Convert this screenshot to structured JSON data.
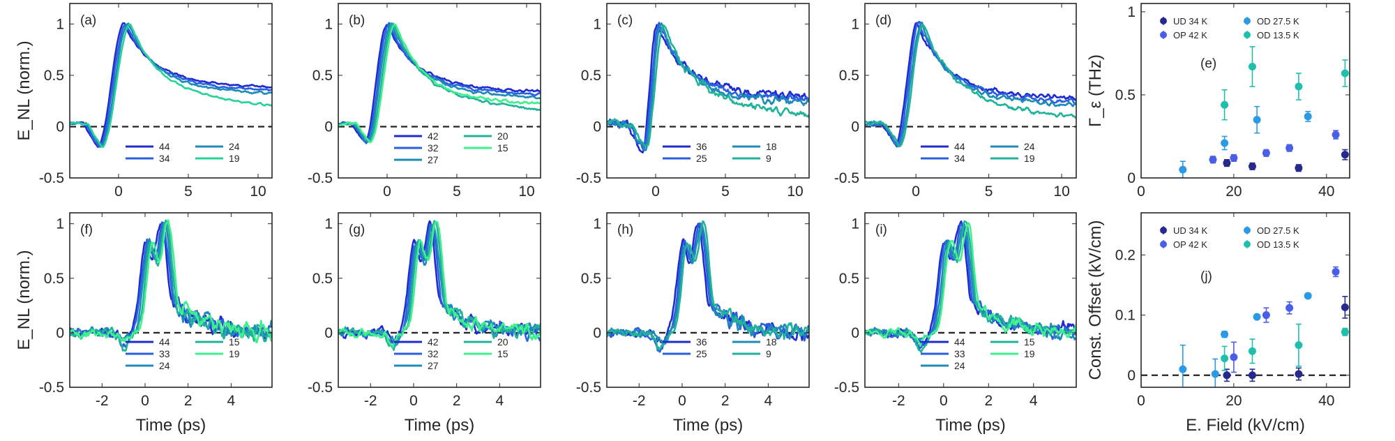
{
  "chart_data": [
    {
      "id": "a",
      "type": "line",
      "panel_label": "(a)",
      "ylabel": "E_NL (norm.)",
      "xlabel": "",
      "xlim": [
        -3.5,
        11
      ],
      "ylim": [
        -0.5,
        1.2
      ],
      "xticks": [
        "0",
        "5",
        "10"
      ],
      "yticks": [
        "-0.5",
        "0",
        "0.5",
        "1"
      ],
      "x_tick_values": [
        0,
        5,
        10
      ],
      "y_tick_values": [
        -0.5,
        0,
        0.5,
        1
      ],
      "dashed_zero_line": true,
      "t_peak": 0.4,
      "t_dip": -1.5,
      "dip": -0.2,
      "decay_end": 0.44,
      "noise": 0.02,
      "series": [
        {
          "name": "44",
          "color": "#1f2bd1"
        },
        {
          "name": "34",
          "color": "#2a5fe0"
        },
        {
          "name": "24",
          "color": "#1d8ab8"
        },
        {
          "name": "19",
          "color": "#26d39a"
        }
      ]
    },
    {
      "id": "b",
      "type": "line",
      "panel_label": "(b)",
      "ylabel": "",
      "xlabel": "",
      "xlim": [
        -3.5,
        11
      ],
      "ylim": [
        -0.5,
        1.2
      ],
      "xticks": [
        "0",
        "5",
        "10"
      ],
      "yticks": [
        "-0.5",
        "0",
        "0.5",
        "1"
      ],
      "x_tick_values": [
        0,
        5,
        10
      ],
      "y_tick_values": [
        -0.5,
        0,
        0.5,
        1
      ],
      "dashed_zero_line": true,
      "t_peak": 0.0,
      "t_dip": -1.6,
      "dip": -0.15,
      "decay_end": 0.4,
      "noise": 0.025,
      "series": [
        {
          "name": "42",
          "color": "#1f2bd1"
        },
        {
          "name": "32",
          "color": "#2a5fe0"
        },
        {
          "name": "27",
          "color": "#1d8ab8"
        },
        {
          "name": "20",
          "color": "#20b39a"
        },
        {
          "name": "15",
          "color": "#3ff08e"
        }
      ]
    },
    {
      "id": "c",
      "type": "line",
      "panel_label": "(c)",
      "ylabel": "",
      "xlabel": "",
      "xlim": [
        -3.5,
        11
      ],
      "ylim": [
        -0.5,
        1.2
      ],
      "xticks": [
        "0",
        "5",
        "10"
      ],
      "yticks": [
        "-0.5",
        "0",
        "0.5",
        "1"
      ],
      "x_tick_values": [
        0,
        5,
        10
      ],
      "y_tick_values": [
        -0.5,
        0,
        0.5,
        1
      ],
      "dashed_zero_line": true,
      "t_peak": 0.1,
      "t_dip": -1.0,
      "dip": -0.25,
      "decay_end": 0.35,
      "noise": 0.07,
      "series": [
        {
          "name": "36",
          "color": "#1f2bd1"
        },
        {
          "name": "25",
          "color": "#2a5fe0"
        },
        {
          "name": "18",
          "color": "#1d8ab8"
        },
        {
          "name": "9",
          "color": "#20b39a"
        }
      ]
    },
    {
      "id": "d",
      "type": "line",
      "panel_label": "(d)",
      "ylabel": "",
      "xlabel": "",
      "xlim": [
        -3.5,
        11
      ],
      "ylim": [
        -0.5,
        1.2
      ],
      "xticks": [
        "0",
        "5",
        "10"
      ],
      "yticks": [
        "-0.5",
        "0",
        "0.5",
        "1"
      ],
      "x_tick_values": [
        0,
        5,
        10
      ],
      "y_tick_values": [
        -0.5,
        0,
        0.5,
        1
      ],
      "dashed_zero_line": true,
      "t_peak": 0.1,
      "t_dip": -1.4,
      "dip": -0.18,
      "decay_end": 0.33,
      "noise": 0.045,
      "series": [
        {
          "name": "44",
          "color": "#1f2bd1"
        },
        {
          "name": "34",
          "color": "#2a5fe0"
        },
        {
          "name": "24",
          "color": "#1d8ab8"
        },
        {
          "name": "19",
          "color": "#20b39a"
        }
      ]
    },
    {
      "id": "f",
      "type": "line",
      "panel_label": "(f)",
      "ylabel": "E_NL (norm.)",
      "xlabel": "Time (ps)",
      "xlim": [
        -3.5,
        5.9
      ],
      "ylim": [
        -0.5,
        1.1
      ],
      "xticks": [
        "-2",
        "0",
        "2",
        "4"
      ],
      "yticks": [
        "-0.5",
        "0",
        "0.5",
        "1"
      ],
      "x_tick_values": [
        -2,
        0,
        2,
        4
      ],
      "y_tick_values": [
        -0.5,
        0,
        0.5,
        1
      ],
      "dashed_zero_line": true,
      "noise": 0.1,
      "series": [
        {
          "name": "44",
          "color": "#1f2bd1"
        },
        {
          "name": "33",
          "color": "#2a5fe0"
        },
        {
          "name": "24",
          "color": "#1d8ab8"
        },
        {
          "name": "15",
          "color": "#20b39a"
        },
        {
          "name": "19",
          "color": "#3ff08e"
        }
      ]
    },
    {
      "id": "g",
      "type": "line",
      "panel_label": "(g)",
      "ylabel": "",
      "xlabel": "Time (ps)",
      "xlim": [
        -3.5,
        5.9
      ],
      "ylim": [
        -0.5,
        1.1
      ],
      "xticks": [
        "-2",
        "0",
        "2",
        "4"
      ],
      "yticks": [
        "-0.5",
        "0",
        "0.5",
        "1"
      ],
      "x_tick_values": [
        -2,
        0,
        2,
        4
      ],
      "y_tick_values": [
        -0.5,
        0,
        0.5,
        1
      ],
      "dashed_zero_line": true,
      "noise": 0.09,
      "series": [
        {
          "name": "42",
          "color": "#1f2bd1"
        },
        {
          "name": "32",
          "color": "#2a5fe0"
        },
        {
          "name": "27",
          "color": "#1d8ab8"
        },
        {
          "name": "20",
          "color": "#20b39a"
        },
        {
          "name": "15",
          "color": "#3ff08e"
        }
      ]
    },
    {
      "id": "h",
      "type": "line",
      "panel_label": "(h)",
      "ylabel": "",
      "xlabel": "Time (ps)",
      "xlim": [
        -3.5,
        5.9
      ],
      "ylim": [
        -0.5,
        1.1
      ],
      "xticks": [
        "-2",
        "0",
        "2",
        "4"
      ],
      "yticks": [
        "-0.5",
        "0",
        "0.5",
        "1"
      ],
      "x_tick_values": [
        -2,
        0,
        2,
        4
      ],
      "y_tick_values": [
        -0.5,
        0,
        0.5,
        1
      ],
      "dashed_zero_line": true,
      "noise": 0.09,
      "series": [
        {
          "name": "36",
          "color": "#1f2bd1"
        },
        {
          "name": "25",
          "color": "#2a5fe0"
        },
        {
          "name": "18",
          "color": "#1d8ab8"
        },
        {
          "name": "9",
          "color": "#20b39a"
        }
      ]
    },
    {
      "id": "i",
      "type": "line",
      "panel_label": "(i)",
      "ylabel": "",
      "xlabel": "Time (ps)",
      "xlim": [
        -3.5,
        5.9
      ],
      "ylim": [
        -0.5,
        1.1
      ],
      "xticks": [
        "-2",
        "0",
        "2",
        "4"
      ],
      "yticks": [
        "-0.5",
        "0",
        "0.5",
        "1"
      ],
      "x_tick_values": [
        -2,
        0,
        2,
        4
      ],
      "y_tick_values": [
        -0.5,
        0,
        0.5,
        1
      ],
      "dashed_zero_line": true,
      "noise": 0.08,
      "series": [
        {
          "name": "44",
          "color": "#1f2bd1"
        },
        {
          "name": "33",
          "color": "#2a5fe0"
        },
        {
          "name": "24",
          "color": "#1d8ab8"
        },
        {
          "name": "15",
          "color": "#20b39a"
        },
        {
          "name": "19",
          "color": "#3ff08e"
        }
      ]
    },
    {
      "id": "e",
      "type": "scatter",
      "panel_label": "(e)",
      "ylabel": "Γ_ε (THz)",
      "xlabel": "",
      "xlim": [
        0,
        45
      ],
      "ylim": [
        0,
        1.05
      ],
      "xticks": [
        "0",
        "20",
        "40"
      ],
      "yticks": [
        "0",
        "0.5",
        "1"
      ],
      "x_tick_values": [
        0,
        20,
        40
      ],
      "y_tick_values": [
        0,
        0.5,
        1
      ],
      "dashed_zero_line": false,
      "series": [
        {
          "name": "UD 34 K",
          "color": "#262a8f",
          "points": [
            [
              18.5,
              0.09,
              0.02
            ],
            [
              24,
              0.07,
              0.02
            ],
            [
              34,
              0.06,
              0.02
            ],
            [
              44,
              0.14,
              0.03
            ]
          ]
        },
        {
          "name": "OP 42 K",
          "color": "#4a5ee8",
          "points": [
            [
              15.5,
              0.11,
              0.02
            ],
            [
              20,
              0.12,
              0.02
            ],
            [
              27,
              0.15,
              0.02
            ],
            [
              32,
              0.18,
              0.02
            ],
            [
              42,
              0.26,
              0.025
            ]
          ]
        },
        {
          "name": "OD 27.5 K",
          "color": "#2a9ae6",
          "points": [
            [
              9,
              0.05,
              0.05
            ],
            [
              18,
              0.21,
              0.04
            ],
            [
              25,
              0.35,
              0.08
            ],
            [
              36,
              0.37,
              0.03
            ]
          ]
        },
        {
          "name": "OD 13.5 K",
          "color": "#1fbfae",
          "points": [
            [
              18,
              0.44,
              0.09
            ],
            [
              24,
              0.67,
              0.12
            ],
            [
              34,
              0.55,
              0.08
            ],
            [
              44,
              0.63,
              0.08
            ]
          ]
        }
      ]
    },
    {
      "id": "j",
      "type": "scatter",
      "panel_label": "(j)",
      "ylabel": "Const. Offset (kV/cm)",
      "xlabel": "E. Field (kV/cm)",
      "xlim": [
        0,
        45
      ],
      "ylim": [
        -0.02,
        0.27
      ],
      "xticks": [
        "0",
        "20",
        "40"
      ],
      "yticks": [
        "0",
        "0.1",
        "0.2"
      ],
      "x_tick_values": [
        0,
        20,
        40
      ],
      "y_tick_values": [
        0,
        0.1,
        0.2
      ],
      "dashed_zero_line": true,
      "series": [
        {
          "name": "UD 34 K",
          "color": "#262a8f",
          "points": [
            [
              18.5,
              0.0,
              0.01
            ],
            [
              24,
              0.0,
              0.01
            ],
            [
              34,
              0.002,
              0.01
            ],
            [
              44,
              0.113,
              0.018
            ]
          ]
        },
        {
          "name": "OP 42 K",
          "color": "#4a5ee8",
          "points": [
            [
              20,
              0.03,
              0.025
            ],
            [
              27,
              0.1,
              0.012
            ],
            [
              32,
              0.112,
              0.01
            ],
            [
              42,
              0.172,
              0.008
            ]
          ]
        },
        {
          "name": "OD 27.5 K",
          "color": "#2a9ae6",
          "points": [
            [
              9,
              0.01,
              0.04
            ],
            [
              18,
              0.068,
              0.005
            ],
            [
              25,
              0.097,
              0.004
            ],
            [
              36,
              0.132,
              0.004
            ],
            [
              16,
              0.002,
              0.025
            ]
          ]
        },
        {
          "name": "OD 13.5 K",
          "color": "#1fbfae",
          "points": [
            [
              18,
              0.028,
              0.02
            ],
            [
              24,
              0.04,
              0.02
            ],
            [
              34,
              0.05,
              0.035
            ],
            [
              44,
              0.072,
              0.006
            ]
          ]
        }
      ]
    }
  ]
}
